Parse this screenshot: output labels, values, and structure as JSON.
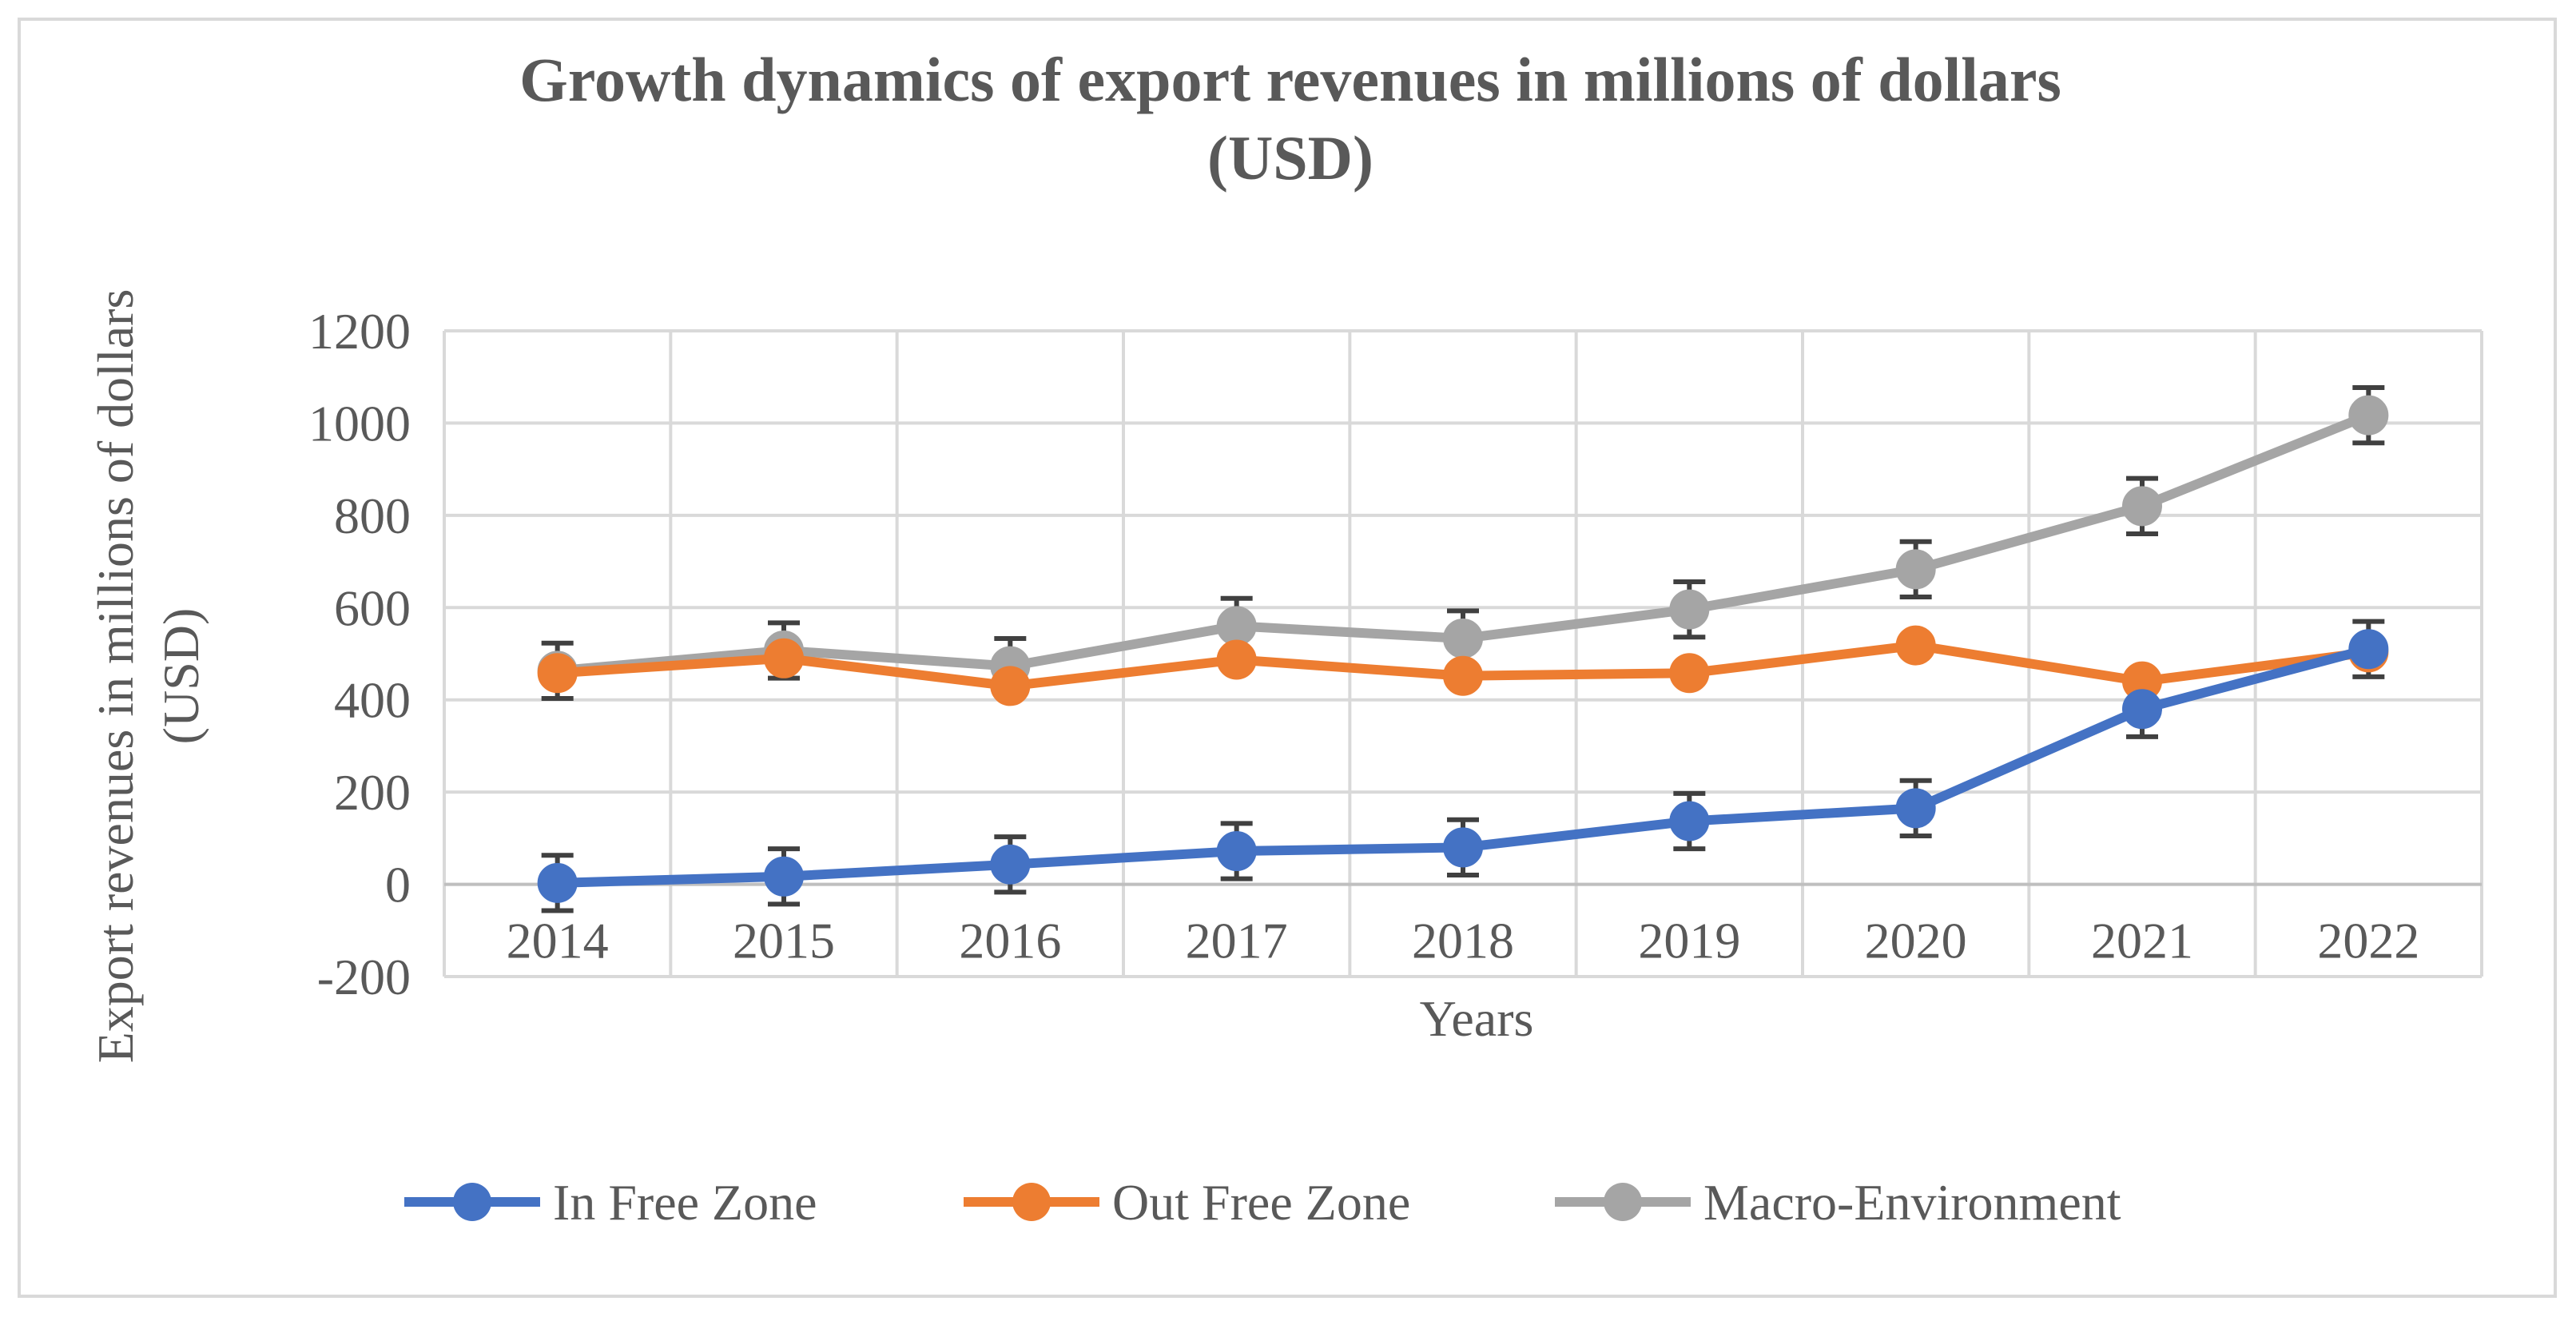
{
  "chart_data": {
    "type": "line",
    "title_lines": [
      "Growth dynamics of export revenues in millions of dollars",
      "(USD)"
    ],
    "xlabel": "Years",
    "ylabel_lines": [
      "Export revenues in millions of dollars",
      "(USD)"
    ],
    "categories": [
      "2014",
      "2015",
      "2016",
      "2017",
      "2018",
      "2019",
      "2020",
      "2021",
      "2022"
    ],
    "ylim": [
      -200,
      1200
    ],
    "yticks": [
      -200,
      0,
      200,
      400,
      600,
      800,
      1000,
      1200
    ],
    "ytick_labels": [
      "-200",
      "0",
      "200",
      "400",
      "600",
      "800",
      "1000",
      "1200"
    ],
    "error_bar": 60,
    "grid": true,
    "legend_position": "bottom",
    "series": [
      {
        "name": "In Free Zone",
        "color": "#4472c4",
        "error_bars": true,
        "values": [
          3,
          17,
          43,
          72,
          80,
          137,
          165,
          380,
          510
        ]
      },
      {
        "name": "Out Free Zone",
        "color": "#ed7d31",
        "error_bars": false,
        "values": [
          458,
          490,
          430,
          487,
          452,
          458,
          518,
          440,
          503
        ]
      },
      {
        "name": "Macro-Environment",
        "color": "#a5a5a5",
        "error_bars": true,
        "values": [
          463,
          507,
          473,
          560,
          533,
          596,
          683,
          820,
          1017
        ]
      }
    ]
  }
}
